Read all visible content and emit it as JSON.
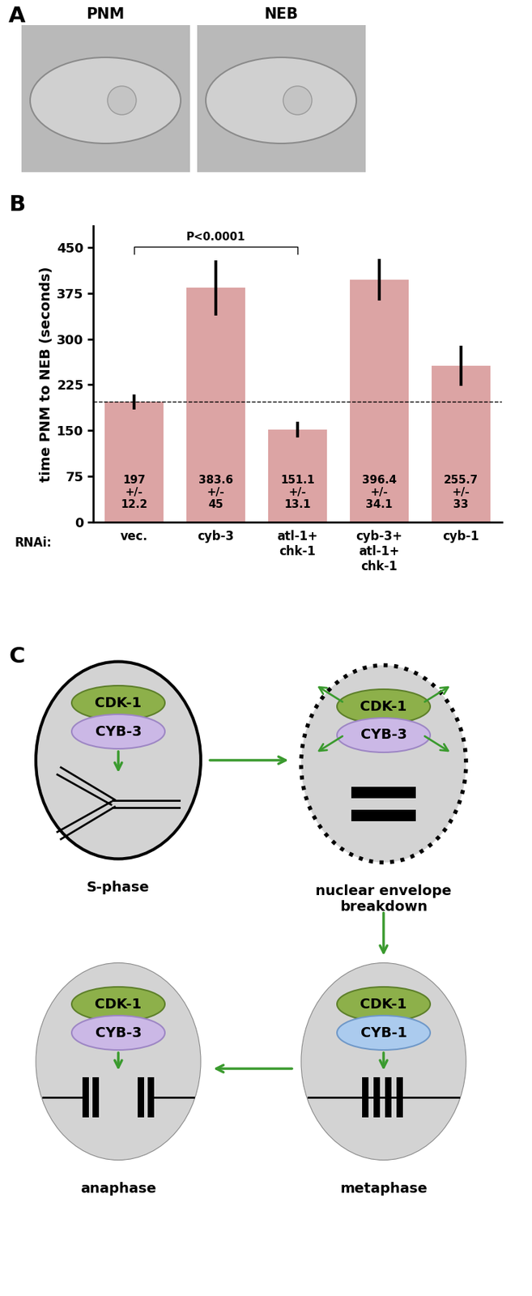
{
  "chart_data": {
    "type": "bar",
    "y_label": "time PNM to NEB (seconds)",
    "x_label": "RNAi:",
    "categories": [
      "vec.",
      "cyb-3",
      "atl-1+\nchk-1",
      "cyb-3+\natl-1+\nchk-1",
      "cyb-1"
    ],
    "values": [
      197,
      383.6,
      151.1,
      396.4,
      255.7
    ],
    "errors": [
      12.2,
      45,
      13.1,
      34.1,
      33
    ],
    "value_labels": [
      "197\n+/-\n12.2",
      "383.6\n+/-\n45",
      "151.1\n+/-\n13.1",
      "396.4\n+/-\n34.1",
      "255.7\n+/-\n33"
    ],
    "data_labels": true,
    "color": "#dca4a4",
    "ylim": [
      0,
      485
    ],
    "yticks": [
      0,
      75,
      150,
      225,
      300,
      375,
      450
    ],
    "reference_line": 197,
    "comparison": {
      "text": "P<0.0001",
      "from": 0,
      "to": 2
    },
    "grid": false
  },
  "panel_labels": [
    "A",
    "B",
    "C"
  ],
  "images": [
    "PNM",
    "NEB"
  ],
  "diagram": {
    "nodes": [
      {
        "label": "S-phase",
        "complex": [
          "CDK-1",
          "CYB-3"
        ]
      },
      {
        "label": "nuclear envelope\nbreakdown",
        "complex": [
          "CDK-1",
          "CYB-3"
        ]
      },
      {
        "label": "metaphase",
        "complex": [
          "CDK-1",
          "CYB-1"
        ]
      },
      {
        "label": "anaphase",
        "complex": [
          "CDK-1",
          "CYB-3"
        ]
      }
    ]
  }
}
